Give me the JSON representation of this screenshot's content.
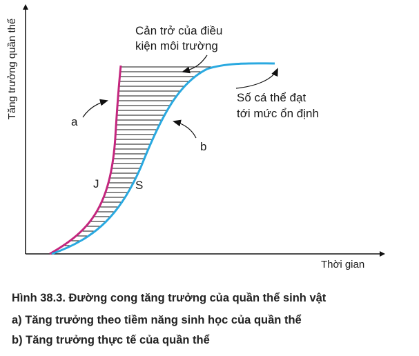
{
  "y_axis_label": "Tăng trưởng quần thể",
  "x_axis_label": "Thời gian",
  "annotations": {
    "constraint": [
      "Cản trở của điều",
      "kiện môi trường"
    ],
    "equilibrium": [
      "Số cá thể đạt",
      "tới mức ổn định"
    ],
    "a": "a",
    "b": "b",
    "j": "J",
    "s": "S"
  },
  "caption": {
    "title": "Hình 38.3. Đường cong tăng trưởng của quần thể sinh vật",
    "lines": [
      "a) Tăng trưởng theo tiềm năng sinh học của quần thể",
      "b) Tăng trưởng thực tế của quần thể"
    ]
  }
}
